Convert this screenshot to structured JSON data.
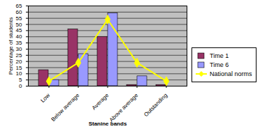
{
  "chart_data": {
    "type": "bar",
    "x_label": "Stanine bands",
    "y_label": "Percentage of students",
    "categories": [
      "Low",
      "Below average",
      "Average",
      "Above average",
      "Outstanding"
    ],
    "series": [
      {
        "name": "Time 1",
        "color": "#993366",
        "values": [
          13,
          46,
          40,
          1,
          1
        ]
      },
      {
        "name": "Time 6",
        "color": "#9999ff",
        "values": [
          5,
          26,
          59,
          8,
          0
        ]
      },
      {
        "name": "National norms",
        "type": "line",
        "color": "#ffff00",
        "marker": "diamond",
        "values": [
          4,
          19,
          54,
          19,
          4
        ]
      }
    ],
    "ylim": [
      0,
      65
    ],
    "yticks": [
      0,
      5,
      10,
      15,
      20,
      25,
      30,
      35,
      40,
      45,
      50,
      55,
      60,
      65
    ],
    "grid": true,
    "legend": "right"
  }
}
